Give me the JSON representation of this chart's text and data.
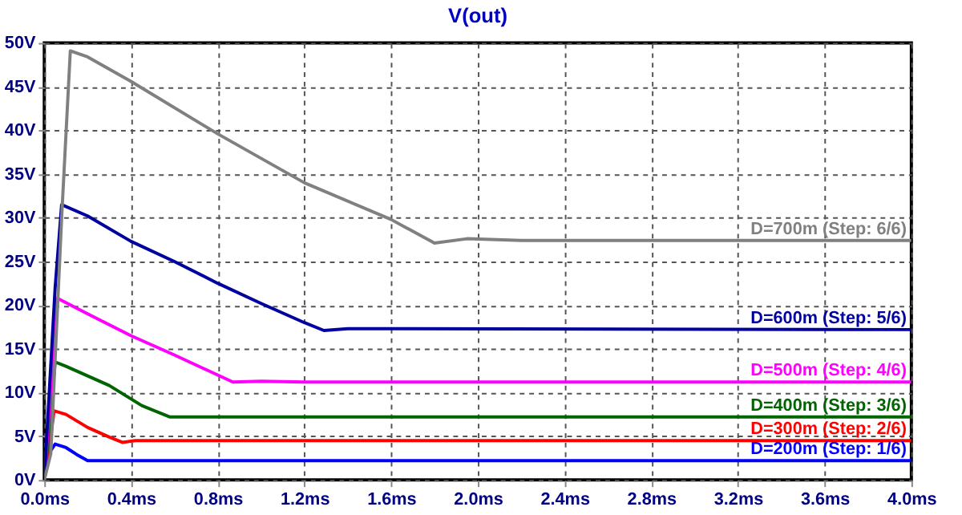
{
  "chart_data": {
    "type": "line",
    "title": "V(out)",
    "xlim": [
      0,
      4.0
    ],
    "ylim": [
      0,
      50
    ],
    "xticks": [
      {
        "value": 0,
        "label": "0.0ms"
      },
      {
        "value": 0.4,
        "label": "0.4ms"
      },
      {
        "value": 0.8,
        "label": "0.8ms"
      },
      {
        "value": 1.2,
        "label": "1.2ms"
      },
      {
        "value": 1.6,
        "label": "1.6ms"
      },
      {
        "value": 2.0,
        "label": "2.0ms"
      },
      {
        "value": 2.4,
        "label": "2.4ms"
      },
      {
        "value": 2.8,
        "label": "2.8ms"
      },
      {
        "value": 3.2,
        "label": "3.2ms"
      },
      {
        "value": 3.6,
        "label": "3.6ms"
      },
      {
        "value": 4.0,
        "label": "4.0ms"
      }
    ],
    "yticks": [
      {
        "value": 0,
        "label": "0V"
      },
      {
        "value": 5,
        "label": "5V"
      },
      {
        "value": 10,
        "label": "10V"
      },
      {
        "value": 15,
        "label": "15V"
      },
      {
        "value": 20,
        "label": "20V"
      },
      {
        "value": 25,
        "label": "25V"
      },
      {
        "value": 30,
        "label": "30V"
      },
      {
        "value": 35,
        "label": "35V"
      },
      {
        "value": 40,
        "label": "40V"
      },
      {
        "value": 45,
        "label": "45V"
      },
      {
        "value": 50,
        "label": "50V"
      }
    ],
    "grid": true,
    "legend": false,
    "line_style": "solid",
    "marker": "none",
    "series": [
      {
        "name": "D=200m  (Step: 1/6)",
        "color": "#0000ff",
        "x": [
          0,
          0.02,
          0.05,
          0.1,
          0.15,
          0.2,
          0.25,
          4.0
        ],
        "values": [
          0,
          3.0,
          4.1,
          3.7,
          2.9,
          2.2,
          2.2,
          2.2
        ]
      },
      {
        "name": "D=300m  (Step: 2/6)",
        "color": "#ff0000",
        "x": [
          0,
          0.03,
          0.045,
          0.1,
          0.2,
          0.3,
          0.36,
          0.42,
          4.0
        ],
        "values": [
          0,
          5.0,
          7.9,
          7.5,
          6.0,
          4.9,
          4.3,
          4.5,
          4.5
        ]
      },
      {
        "name": "D=400m  (Step: 3/6)",
        "color": "#006400",
        "x": [
          0,
          0.03,
          0.05,
          0.1,
          0.3,
          0.45,
          0.58,
          4.0
        ],
        "values": [
          0,
          8.0,
          13.5,
          13.0,
          10.8,
          8.5,
          7.2,
          7.2
        ]
      },
      {
        "name": "D=500m  (Step: 4/6)",
        "color": "#ff00ff",
        "x": [
          0,
          0.04,
          0.06,
          0.2,
          0.4,
          0.6,
          0.8,
          0.87,
          1.0,
          1.2,
          4.0
        ],
        "values": [
          0,
          14.0,
          20.8,
          19.0,
          16.5,
          14.3,
          12.0,
          11.2,
          11.3,
          11.2,
          11.2
        ]
      },
      {
        "name": "D=600m  (Step: 5/6)",
        "color": "#0000a0",
        "x": [
          0,
          0.05,
          0.08,
          0.2,
          0.4,
          0.6,
          0.8,
          1.0,
          1.2,
          1.29,
          1.4,
          1.6,
          4.0
        ],
        "values": [
          0,
          22.0,
          31.5,
          30.2,
          27.3,
          25.0,
          22.5,
          20.2,
          18.0,
          17.1,
          17.3,
          17.3,
          17.2
        ]
      },
      {
        "name": "D=700m  (Step: 6/6)",
        "color": "#808080",
        "x": [
          0,
          0.03,
          0.08,
          0.12,
          0.2,
          0.4,
          0.8,
          1.2,
          1.6,
          1.8,
          1.95,
          2.2,
          4.0
        ],
        "values": [
          0,
          3.0,
          30.0,
          49.1,
          48.4,
          45.6,
          39.6,
          34.0,
          29.8,
          27.1,
          27.6,
          27.4,
          27.4
        ]
      }
    ]
  }
}
